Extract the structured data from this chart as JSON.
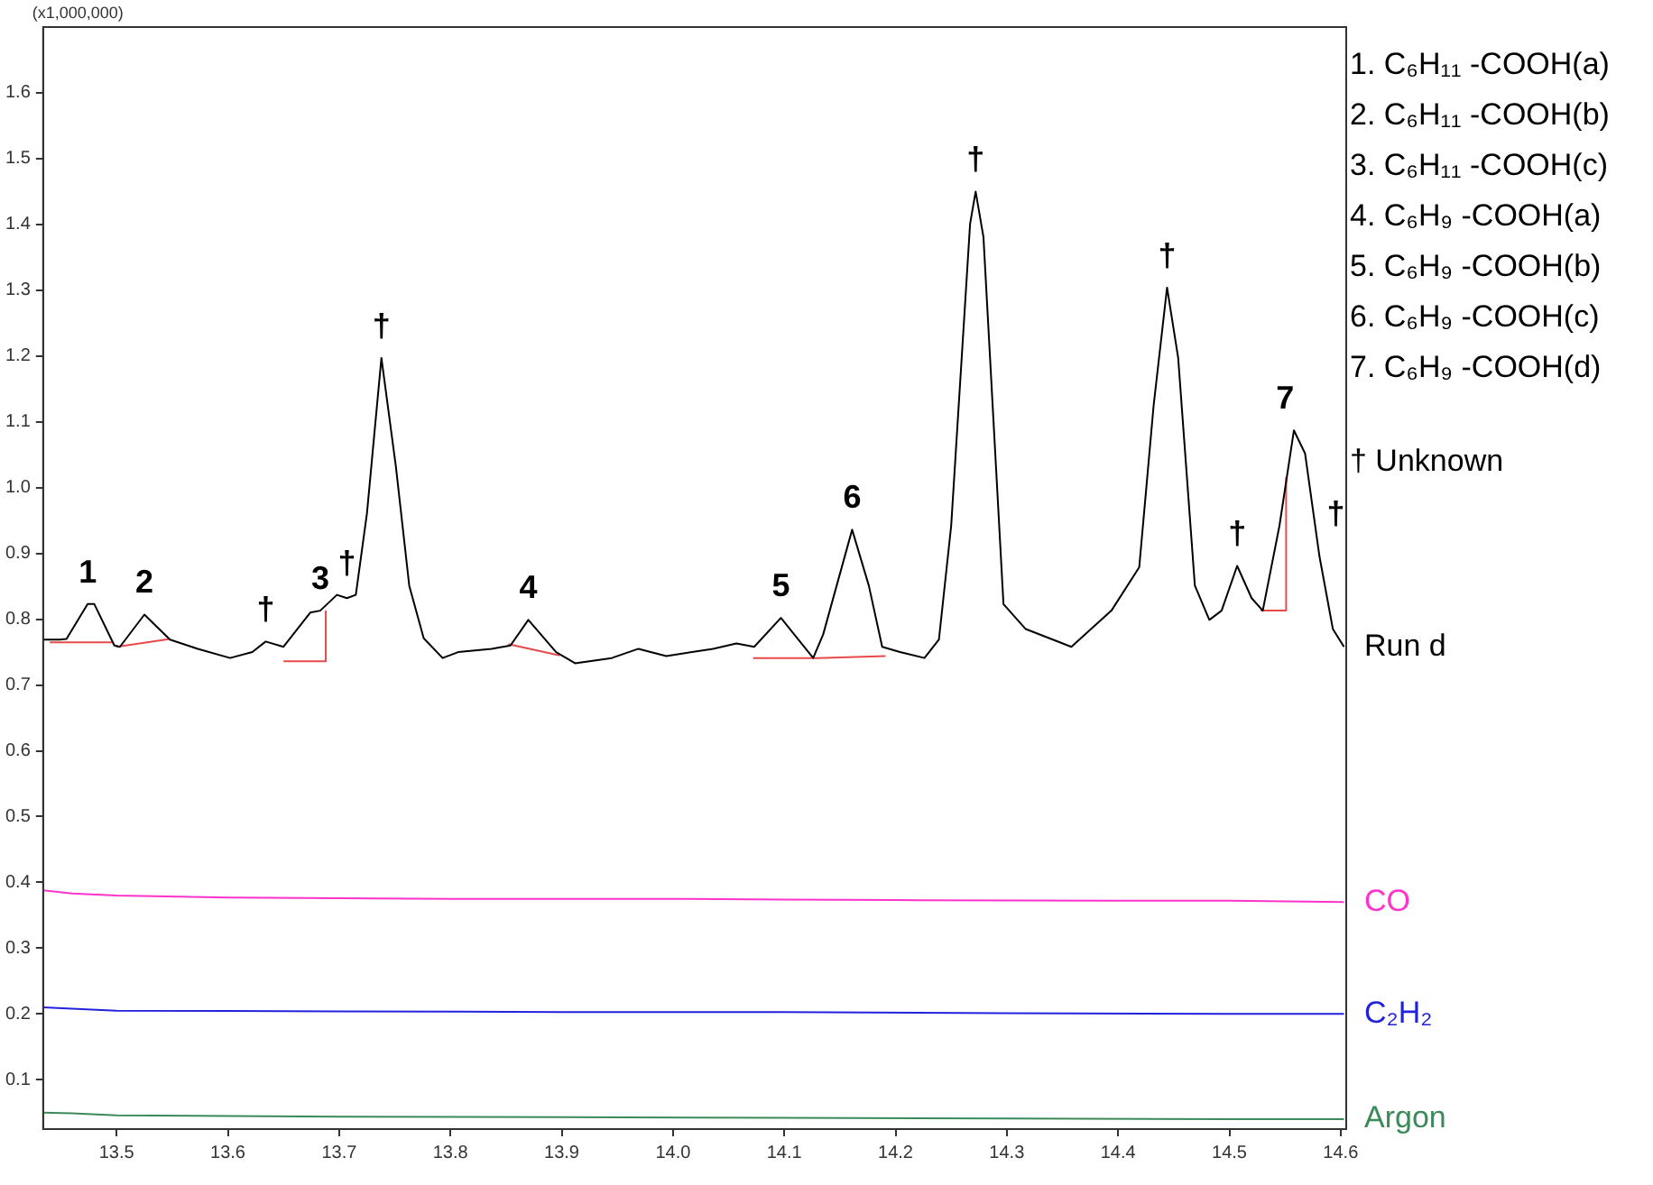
{
  "chart_data": {
    "type": "line",
    "ylabel": "(x1,000,000)",
    "xlim": [
      13.434,
      14.605
    ],
    "xticks": [
      13.5,
      13.6,
      13.7,
      13.8,
      13.9,
      {
        "value": 14,
        "label": "14.0"
      },
      14.1,
      14.2,
      14.3,
      14.4,
      14.5,
      14.6
    ],
    "ylim": [
      0.025,
      1.7
    ],
    "yticks": [
      0.1,
      0.2,
      0.3,
      0.4,
      0.5,
      0.6,
      0.7,
      0.8,
      0.9,
      {
        "value": 1,
        "label": "1.0"
      },
      1.1,
      1.2,
      1.3,
      1.4,
      1.5,
      1.6
    ],
    "grid": false,
    "legend": false,
    "marker": "none",
    "series": [
      {
        "name": "Run d",
        "color": "#000000",
        "x": [
          13.434,
          13.449,
          13.455,
          13.474,
          13.48,
          13.498,
          13.503,
          13.525,
          13.548,
          13.573,
          13.602,
          13.622,
          13.634,
          13.65,
          13.674,
          13.683,
          13.698,
          13.707,
          13.715,
          13.725,
          13.738,
          13.751,
          13.763,
          13.776,
          13.793,
          13.807,
          13.837,
          13.854,
          13.87,
          13.895,
          13.912,
          13.945,
          13.969,
          13.994,
          14.036,
          14.057,
          14.073,
          14.097,
          14.126,
          14.135,
          14.161,
          14.176,
          14.188,
          14.204,
          14.226,
          14.239,
          14.25,
          14.267,
          14.272,
          14.279,
          14.297,
          14.317,
          14.358,
          14.394,
          14.419,
          14.432,
          14.444,
          14.454,
          14.469,
          14.482,
          14.493,
          14.507,
          14.52,
          14.53,
          14.545,
          14.558,
          14.568,
          14.581,
          14.593,
          14.603
        ],
        "values": [
          0.769,
          0.769,
          0.77,
          0.823,
          0.823,
          0.76,
          0.758,
          0.807,
          0.769,
          0.755,
          0.741,
          0.75,
          0.766,
          0.758,
          0.81,
          0.813,
          0.837,
          0.832,
          0.837,
          0.961,
          1.197,
          1.032,
          0.851,
          0.771,
          0.741,
          0.75,
          0.755,
          0.76,
          0.799,
          0.75,
          0.733,
          0.741,
          0.755,
          0.744,
          0.755,
          0.763,
          0.758,
          0.802,
          0.741,
          0.777,
          0.936,
          0.851,
          0.758,
          0.75,
          0.741,
          0.769,
          0.942,
          1.401,
          1.45,
          1.381,
          0.823,
          0.785,
          0.758,
          0.813,
          0.879,
          1.126,
          1.304,
          1.197,
          0.851,
          0.799,
          0.813,
          0.881,
          0.832,
          0.813,
          0.942,
          1.087,
          1.052,
          0.895,
          0.785,
          0.758
        ]
      },
      {
        "name": "CO",
        "color": "#ff33cc",
        "x": [
          13.434,
          13.46,
          13.5,
          13.6,
          13.8,
          14.0,
          14.1,
          14.2,
          14.4,
          14.5,
          14.603
        ],
        "values": [
          0.388,
          0.383,
          0.38,
          0.377,
          0.375,
          0.375,
          0.374,
          0.373,
          0.372,
          0.372,
          0.37
        ]
      },
      {
        "name": "C₂H₂",
        "color": "#2222dd",
        "x": [
          13.434,
          13.46,
          13.5,
          13.7,
          13.9,
          14.1,
          14.3,
          14.5,
          14.603
        ],
        "values": [
          0.21,
          0.208,
          0.205,
          0.204,
          0.203,
          0.203,
          0.201,
          0.2,
          0.2
        ]
      },
      {
        "name": "Argon",
        "color": "#3a8a5a",
        "x": [
          13.434,
          13.46,
          13.5,
          13.7,
          13.9,
          14.1,
          14.3,
          14.5,
          14.603
        ],
        "values": [
          0.05,
          0.049,
          0.046,
          0.044,
          0.043,
          0.042,
          0.041,
          0.04,
          0.04
        ]
      },
      {
        "color": "#e84a4a",
        "x": [
          13.44,
          13.497
        ],
        "values": [
          0.765,
          0.765
        ]
      },
      {
        "color": "#e84a4a",
        "x": [
          13.5,
          13.548
        ],
        "values": [
          0.758,
          0.77
        ]
      },
      {
        "color": "#e84a4a",
        "x": [
          13.65,
          13.688,
          13.688
        ],
        "values": [
          0.736,
          0.736,
          0.813
        ]
      },
      {
        "color": "#e84a4a",
        "x": [
          13.852,
          13.898
        ],
        "values": [
          0.762,
          0.745
        ]
      },
      {
        "color": "#e84a4a",
        "x": [
          14.072,
          14.13,
          14.191
        ],
        "values": [
          0.741,
          0.741,
          0.744
        ]
      },
      {
        "color": "#e84a4a",
        "x": [
          14.528,
          14.551,
          14.551
        ],
        "values": [
          0.813,
          0.813,
          1.016
        ]
      }
    ],
    "annotations": [
      {
        "text": "1",
        "x": 13.474,
        "y": 0.823
      },
      {
        "text": "2",
        "x": 13.525,
        "y": 0.807
      },
      {
        "text": "†",
        "x": 13.634,
        "y": 0.766
      },
      {
        "text": "3",
        "x": 13.683,
        "y": 0.813
      },
      {
        "text": "†",
        "x": 13.707,
        "y": 0.837
      },
      {
        "text": "†",
        "x": 13.738,
        "y": 1.197
      },
      {
        "text": "4",
        "x": 13.87,
        "y": 0.799
      },
      {
        "text": "5",
        "x": 14.097,
        "y": 0.802
      },
      {
        "text": "6",
        "x": 14.161,
        "y": 0.936
      },
      {
        "text": "†",
        "x": 14.272,
        "y": 1.45
      },
      {
        "text": "†",
        "x": 14.444,
        "y": 1.304
      },
      {
        "text": "†",
        "x": 14.507,
        "y": 0.881
      },
      {
        "text": "7",
        "x": 14.55,
        "y": 1.087
      },
      {
        "text": "†",
        "x": 14.581,
        "y": 0.895
      },
      "1. C₆H₁₁ -COOH(a)",
      "2. C₆H₁₁ -COOH(b)",
      "3. C₆H₁₁ -COOH(c)",
      "4. C₆H₉ -COOH(a)",
      "5. C₆H₉ -COOH(b)",
      "6. C₆H₉ -COOH(c)",
      "7. C₆H₉ -COOH(d)",
      "† Unknown"
    ]
  }
}
